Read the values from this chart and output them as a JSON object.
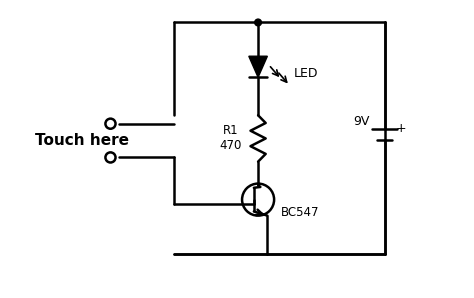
{
  "bg_color": "#ffffff",
  "line_color": "#000000",
  "line_width": 1.8,
  "touch_here_text": "Touch here",
  "led_label": "LED",
  "r1_label": "R1\n470",
  "bc547_label": "BC547",
  "v9_label": "9V",
  "fig_width": 4.74,
  "fig_height": 2.98
}
